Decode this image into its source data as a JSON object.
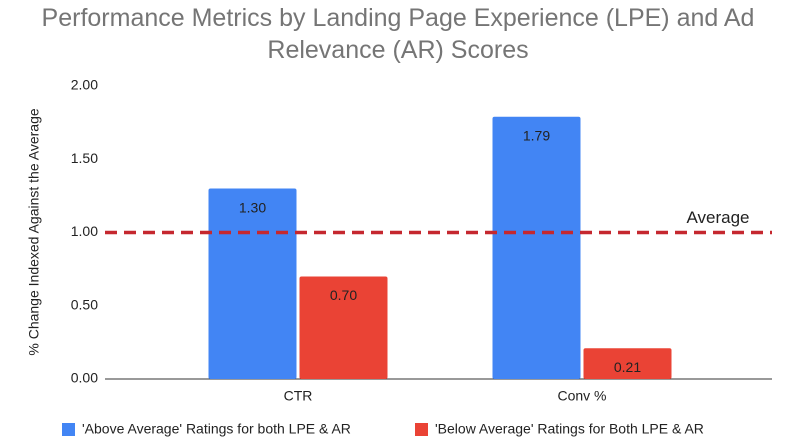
{
  "chart_data": {
    "type": "bar",
    "title": "Performance Metrics by Landing Page Experience (LPE) and Ad Relevance (AR) Scores",
    "y_label": "% Change Indexed Against the Average",
    "categories": [
      "CTR",
      "Conv %"
    ],
    "series": [
      {
        "name": "'Above Average' Ratings for both LPE & AR",
        "color": "#4285f4",
        "values": [
          1.3,
          1.79
        ],
        "value_labels": [
          "1.30",
          "1.79"
        ]
      },
      {
        "name": "'Below Average' Ratings for Both LPE & AR",
        "color": "#ea4335",
        "values": [
          0.7,
          0.21
        ],
        "value_labels": [
          "0.70",
          "0.21"
        ]
      }
    ],
    "ylim": [
      0,
      2
    ],
    "yticks": [
      {
        "value": 0,
        "label": "0.00"
      },
      {
        "value": 0.5,
        "label": "0.50"
      },
      {
        "value": 1,
        "label": "1.00"
      },
      {
        "value": 1.5,
        "label": "1.50"
      },
      {
        "value": 2,
        "label": "2.00"
      }
    ],
    "reference_line": {
      "value": 1,
      "label": "Average",
      "color": "#c5282f"
    },
    "legend": "bottom"
  }
}
